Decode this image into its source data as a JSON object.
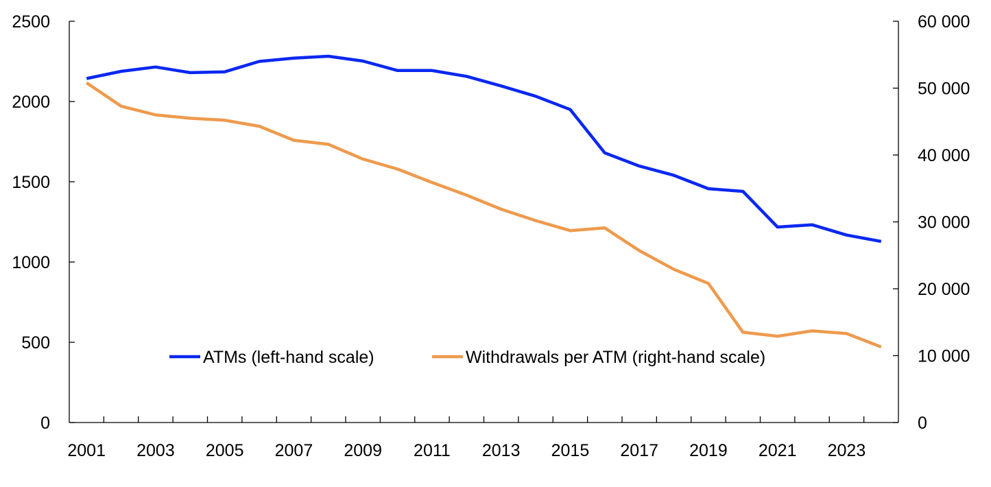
{
  "chart_data": {
    "type": "line",
    "title": "",
    "x": [
      2001,
      2002,
      2003,
      2004,
      2005,
      2006,
      2007,
      2008,
      2009,
      2010,
      2011,
      2012,
      2013,
      2014,
      2015,
      2016,
      2017,
      2018,
      2019,
      2020,
      2021,
      2022,
      2023,
      2024
    ],
    "x_tick_labels": [
      "2001",
      "2003",
      "2005",
      "2007",
      "2009",
      "2011",
      "2013",
      "2015",
      "2017",
      "2019",
      "2021",
      "2023"
    ],
    "x_tick_values": [
      2001,
      2003,
      2005,
      2007,
      2009,
      2011,
      2013,
      2015,
      2017,
      2019,
      2021,
      2023
    ],
    "y_left": {
      "range": [
        0,
        2500
      ],
      "ticks": [
        0,
        500,
        1000,
        1500,
        2000,
        2500
      ],
      "tick_labels": [
        "0",
        "500",
        "1000",
        "1500",
        "2000",
        "2500"
      ]
    },
    "y_right": {
      "range": [
        0,
        60000
      ],
      "ticks": [
        0,
        10000,
        20000,
        30000,
        40000,
        50000,
        60000
      ],
      "tick_labels": [
        "0",
        "10 000",
        "20 000",
        "30 000",
        "40 000",
        "50 000",
        "60 000"
      ]
    },
    "series": [
      {
        "name": "ATMs (left-hand scale)",
        "axis": "left",
        "color": "#0a28f0",
        "values": [
          2143,
          2188,
          2215,
          2180,
          2185,
          2250,
          2270,
          2282,
          2252,
          2193,
          2193,
          2157,
          2097,
          2033,
          1950,
          1680,
          1598,
          1540,
          1457,
          1440,
          1218,
          1232,
          1168,
          1128
        ]
      },
      {
        "name": "Withdrawals per ATM (right-hand scale)",
        "axis": "right",
        "color": "#ee9a4d",
        "values": [
          50800,
          47300,
          46000,
          45500,
          45200,
          44300,
          42200,
          41600,
          39400,
          37900,
          35900,
          34000,
          31900,
          30200,
          28700,
          29100,
          25700,
          22900,
          20800,
          13500,
          12900,
          13700,
          13300,
          11300
        ]
      }
    ],
    "legend_position": "bottom-center",
    "grid": false
  }
}
